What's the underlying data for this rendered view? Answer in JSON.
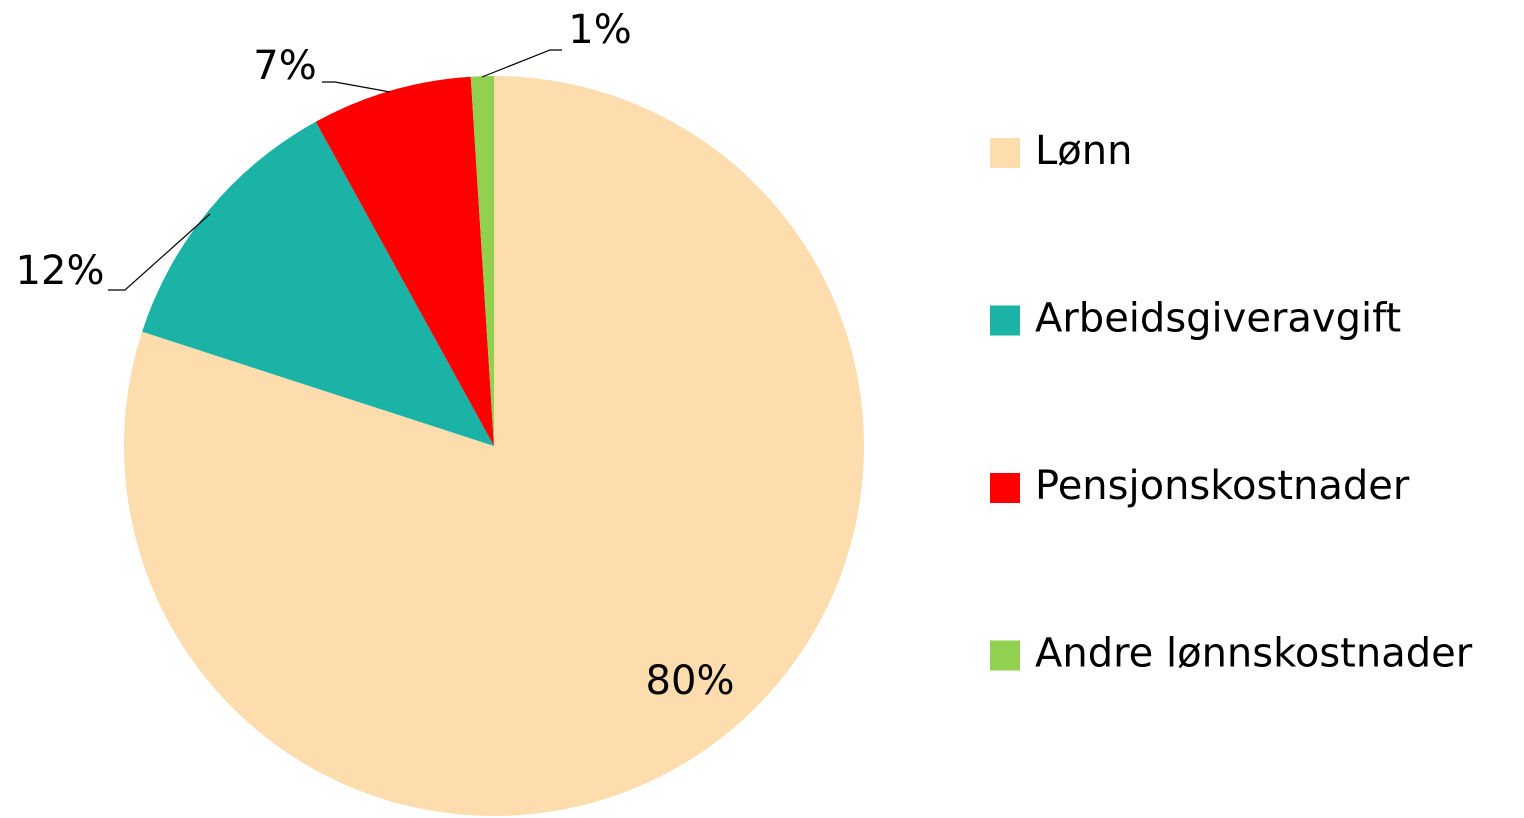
{
  "chart_data": {
    "type": "pie",
    "categories": [
      "Lønn",
      "Arbeidsgiveravgift",
      "Pensjonskostnader",
      "Andre lønnskostnader"
    ],
    "values": [
      80,
      12,
      7,
      1
    ],
    "value_labels": [
      "80%",
      "12%",
      "7%",
      "1%"
    ],
    "colors": [
      "#fddcae",
      "#1ab3a6",
      "#ff0000",
      "#92d050"
    ],
    "legend": "right"
  }
}
